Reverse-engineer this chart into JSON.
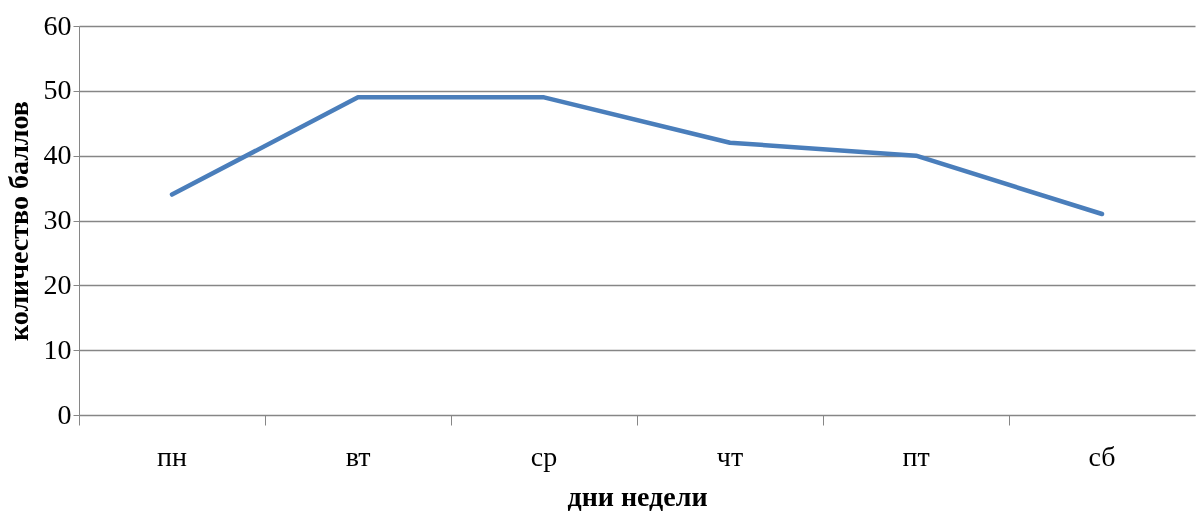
{
  "chart_data": {
    "type": "line",
    "xlabel": "дни недели",
    "ylabel": "количество баллов",
    "categories": [
      "пн",
      "вт",
      "ср",
      "чт",
      "пт",
      "сб"
    ],
    "series": [
      {
        "color": "#4a7ebb",
        "values": [
          34,
          49,
          49,
          42,
          40,
          31
        ]
      }
    ],
    "ylim": [
      0,
      60
    ],
    "yticks": [
      0,
      10,
      20,
      30,
      40,
      50,
      60
    ],
    "grid": "y"
  }
}
